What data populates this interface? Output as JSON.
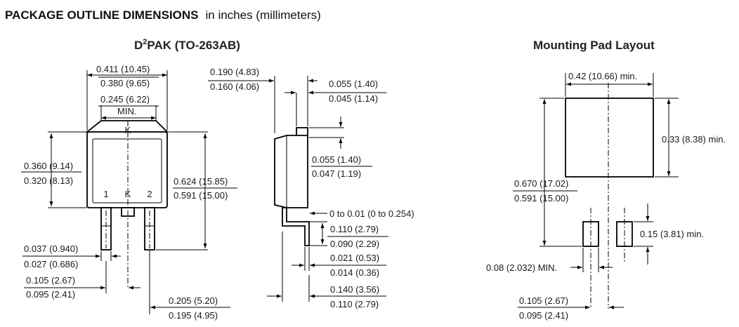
{
  "header": {
    "title": "PACKAGE OUTLINE DIMENSIONS",
    "units": "in inches (millimeters)"
  },
  "package": {
    "title_base": "D",
    "title_sup": "2",
    "title_rest": "PAK (TO-263AB)",
    "pin_labels": [
      "1",
      "K",
      "2"
    ],
    "tab_label": "K",
    "dims": {
      "width_max": "0.411 (10.45)",
      "width_min": "0.380 (9.65)",
      "tab_width": "0.245 (6.22)",
      "tab_width_note": "MIN.",
      "body_h_max": "0.360 (9.14)",
      "body_h_min": "0.320 (8.13)",
      "total_h_max": "0.624 (15.85)",
      "total_h_min": "0.591 (15.00)",
      "lead_w_max": "0.037 (0.940)",
      "lead_w_min": "0.027 (0.686)",
      "pitch_max": "0.105 (2.67)",
      "pitch_min": "0.095 (2.41)",
      "span_max": "0.205 (5.20)",
      "span_min": "0.195 (4.95)"
    }
  },
  "side": {
    "dims": {
      "thick_max": "0.190 (4.83)",
      "thick_min": "0.160 (4.06)",
      "flange_max": "0.055 (1.40)",
      "flange_min": "0.045 (1.14)",
      "tab_t_max": "0.055 (1.40)",
      "tab_t_min": "0.047 (1.19)",
      "standoff": "0 to 0.01 (0 to 0.254)",
      "foot_max": "0.110 (2.79)",
      "foot_min": "0.090 (2.29)",
      "lead_t_max": "0.021 (0.53)",
      "lead_t_min": "0.014 (0.36)",
      "reach_max": "0.140 (3.56)",
      "reach_min": "0.110 (2.79)"
    }
  },
  "pad": {
    "title": "Mounting Pad Layout",
    "dims": {
      "width": "0.42 (10.66) min.",
      "height": "0.33 (8.38) min.",
      "total_max": "0.670 (17.02)",
      "total_min": "0.591 (15.00)",
      "small_h": "0.15 (3.81) min.",
      "small_w": "0.08 (2.032) MIN.",
      "pitch_max": "0.105 (2.67)",
      "pitch_min": "0.095 (2.41)"
    }
  }
}
